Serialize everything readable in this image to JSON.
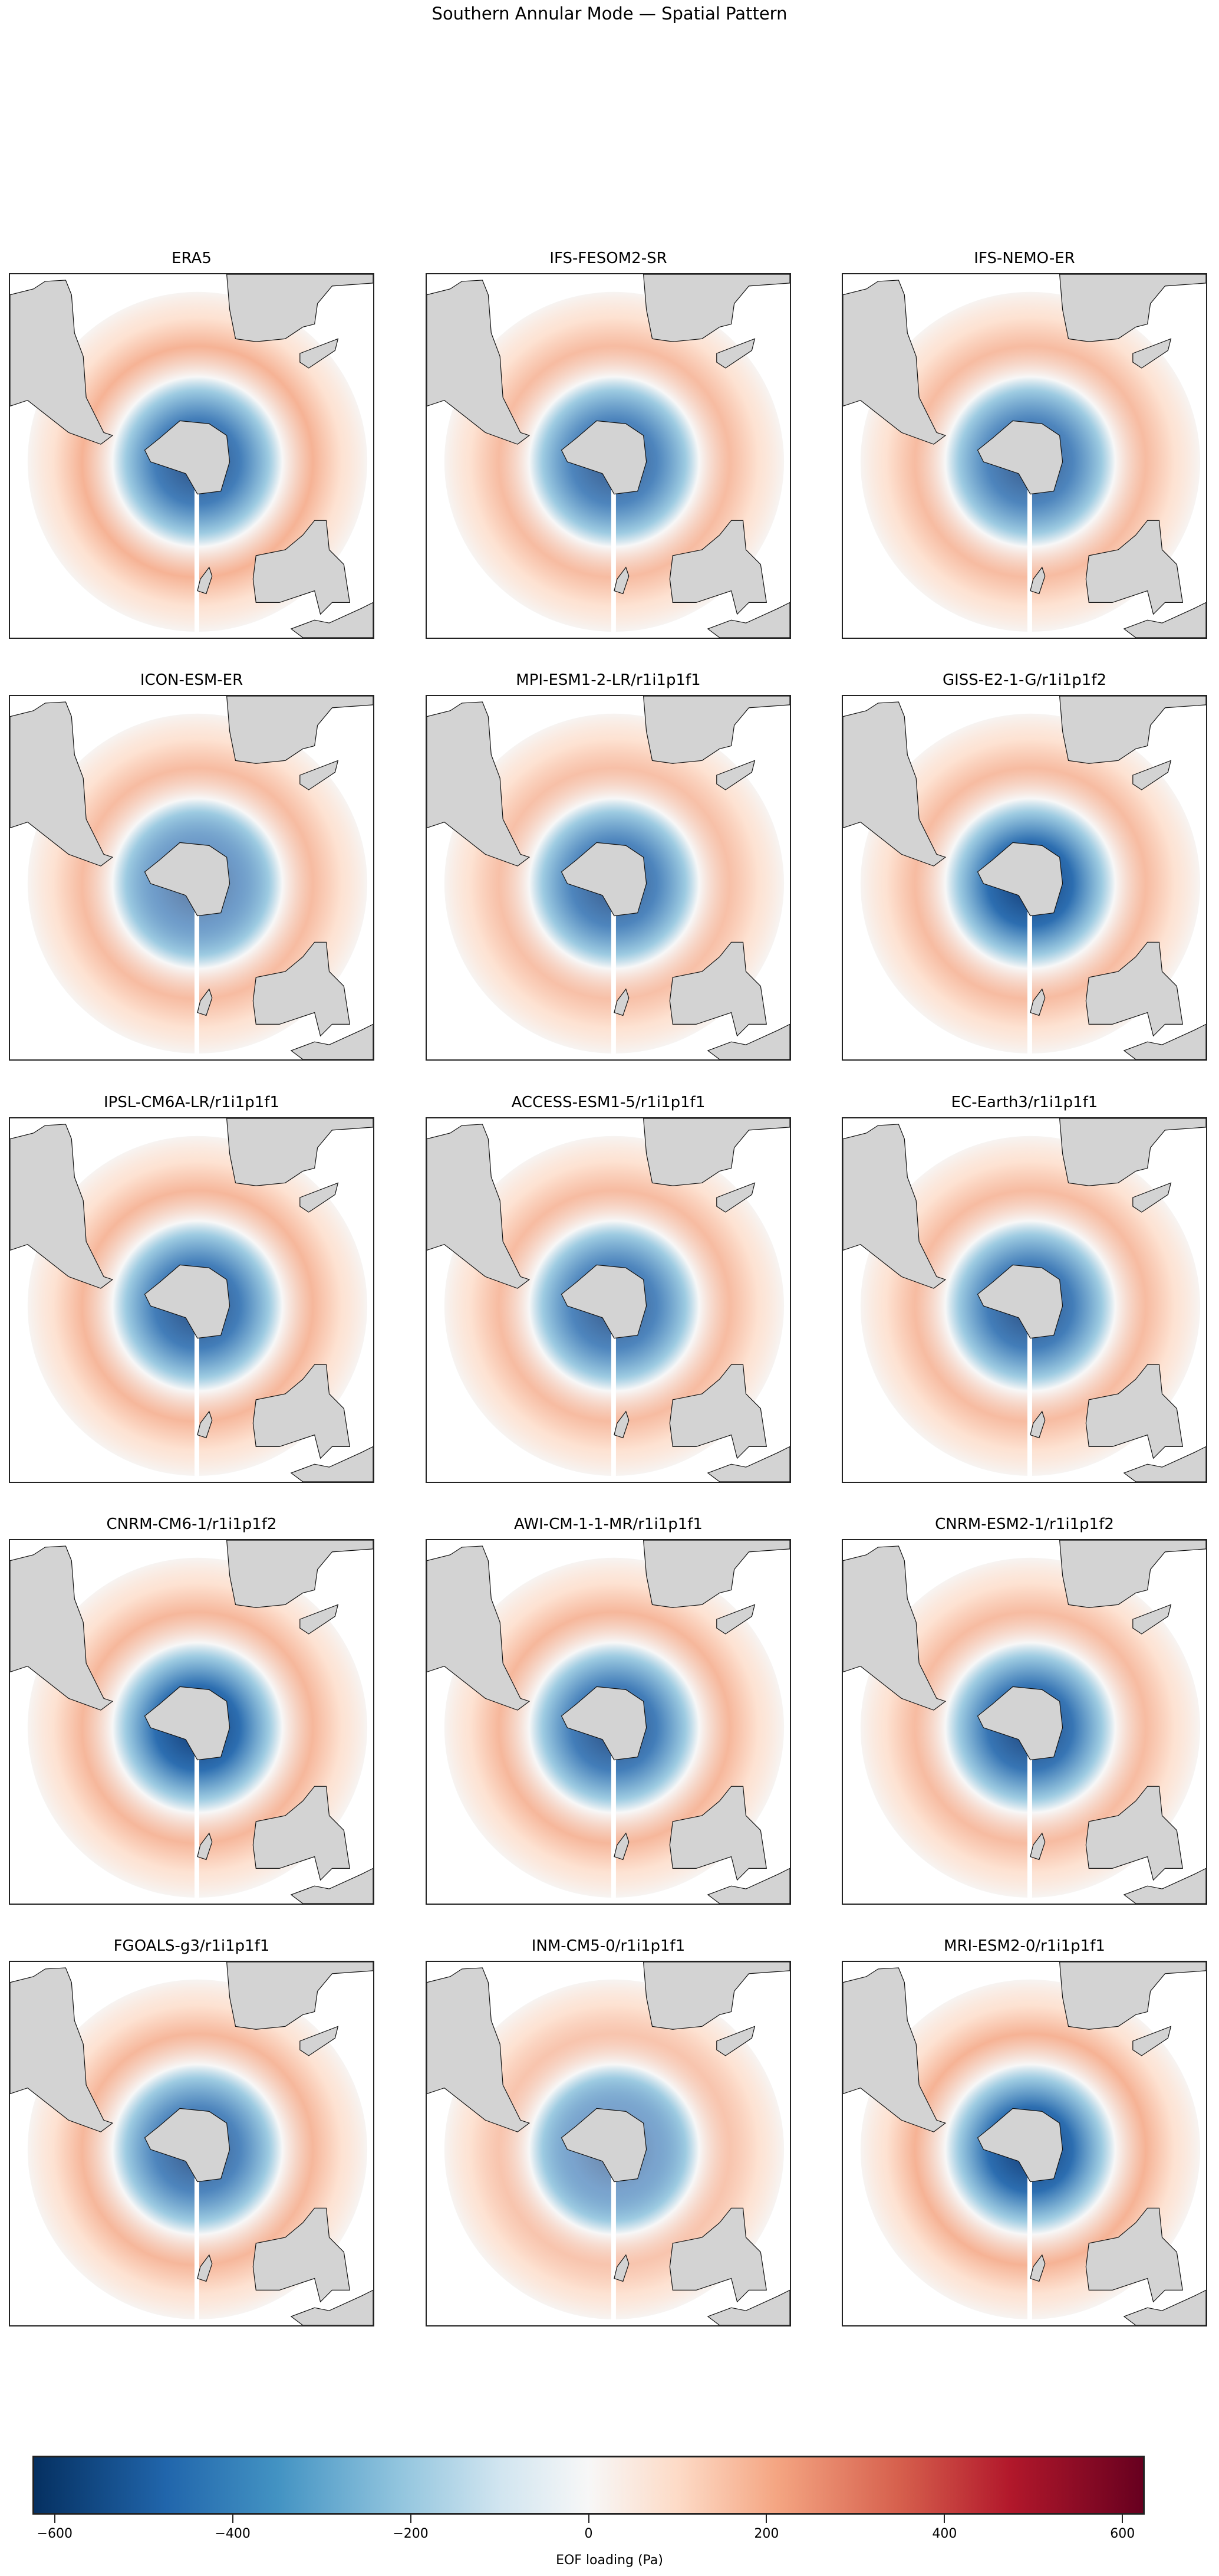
{
  "figure": {
    "title": "Southern Annular Mode — Spatial Pattern"
  },
  "colorbar": {
    "label": "EOF loading (Pa)",
    "ticks": [
      "−600",
      "−400",
      "−200",
      "0",
      "200",
      "400",
      "600"
    ],
    "range": [
      -625,
      625
    ],
    "colormap": "RdBu_r",
    "colors": {
      "min": "#053061",
      "mid": "#f7f7f7",
      "max": "#67001f"
    }
  },
  "panels": [
    {
      "title": "ERA5"
    },
    {
      "title": "IFS-FESOM2-SR"
    },
    {
      "title": "IFS-NEMO-ER"
    },
    {
      "title": "ICON-ESM-ER"
    },
    {
      "title": "MPI-ESM1-2-LR/r1i1p1f1"
    },
    {
      "title": "GISS-E2-1-G/r1i1p1f2"
    },
    {
      "title": "IPSL-CM6A-LR/r1i1p1f1"
    },
    {
      "title": "ACCESS-ESM1-5/r1i1p1f1"
    },
    {
      "title": "EC-Earth3/r1i1p1f1"
    },
    {
      "title": "CNRM-CM6-1/r1i1p1f2"
    },
    {
      "title": "AWI-CM-1-1-MR/r1i1p1f1"
    },
    {
      "title": "CNRM-ESM2-1/r1i1p1f2"
    },
    {
      "title": "FGOALS-g3/r1i1p1f1"
    },
    {
      "title": "INM-CM5-0/r1i1p1f1"
    },
    {
      "title": "MRI-ESM2-0/r1i1p1f1"
    }
  ],
  "chart_data": {
    "type": "heatmap",
    "title": "Southern Annular Mode — Spatial Pattern",
    "projection": "South Polar Stereographic",
    "layout": {
      "rows": 5,
      "cols": 3
    },
    "subplots": [
      "ERA5",
      "IFS-FESOM2-SR",
      "IFS-NEMO-ER",
      "ICON-ESM-ER",
      "MPI-ESM1-2-LR/r1i1p1f1",
      "GISS-E2-1-G/r1i1p1f2",
      "IPSL-CM6A-LR/r1i1p1f1",
      "ACCESS-ESM1-5/r1i1p1f1",
      "EC-Earth3/r1i1p1f1",
      "CNRM-CM6-1/r1i1p1f2",
      "AWI-CM-1-1-MR/r1i1p1f1",
      "CNRM-ESM2-1/r1i1p1f2",
      "FGOALS-g3/r1i1p1f1",
      "INM-CM5-0/r1i1p1f1",
      "MRI-ESM2-0/r1i1p1f1"
    ],
    "colorbar": {
      "label": "EOF loading (Pa)",
      "ticks": [
        -600,
        -400,
        -200,
        0,
        200,
        400,
        600
      ],
      "vmin": -625,
      "vmax": 625,
      "cmap": "RdBu_r"
    },
    "pattern": "Negative loading (blue, ~-400 to -600 Pa) over Antarctica/high latitudes surrounded by positive annulus (red, ~+150 to +300 Pa) at mid-latitudes",
    "xlabel": "",
    "ylabel": "",
    "grid": false
  }
}
